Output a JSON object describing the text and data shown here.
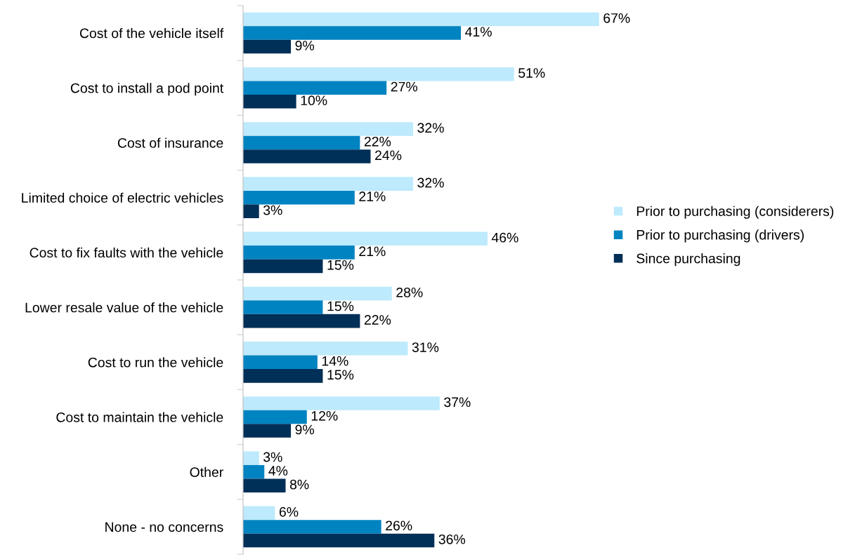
{
  "chart_data": {
    "type": "bar",
    "orientation": "horizontal",
    "categories": [
      "Cost of the vehicle itself",
      "Cost to install a pod point",
      "Cost of insurance",
      "Limited choice of electric vehicles",
      "Cost to fix faults with the vehicle",
      "Lower resale value of the vehicle",
      "Cost to run the vehicle",
      "Cost to maintain the vehicle",
      "Other",
      "None - no concerns"
    ],
    "series": [
      {
        "name": "Prior to purchasing (considerers)",
        "color": "#bdeafc",
        "values": [
          67,
          51,
          32,
          32,
          46,
          28,
          31,
          37,
          3,
          6
        ],
        "value_labels": [
          "67%",
          "51%",
          "32%",
          "32%",
          "46%",
          "28%",
          "31%",
          "37%",
          "3%",
          "6%"
        ]
      },
      {
        "name": "Prior to purchasing (drivers)",
        "color": "#0083c1",
        "values": [
          41,
          27,
          22,
          21,
          21,
          15,
          14,
          12,
          4,
          26
        ],
        "value_labels": [
          "41%",
          "27%",
          "22%",
          "21%",
          "21%",
          "15%",
          "14%",
          "12%",
          "4%",
          "26%"
        ]
      },
      {
        "name": "Since purchasing",
        "color": "#002f57",
        "values": [
          9,
          10,
          24,
          3,
          15,
          22,
          15,
          9,
          8,
          36
        ],
        "value_labels": [
          "9%",
          "10%",
          "24%",
          "3%",
          "15%",
          "22%",
          "15%",
          "9%",
          "8%",
          "36%"
        ]
      }
    ],
    "legend": "right",
    "tick_labels": "y",
    "grid": false
  }
}
